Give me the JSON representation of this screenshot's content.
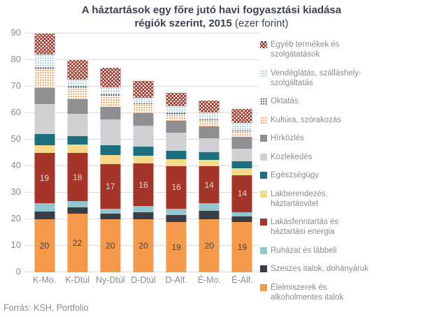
{
  "title": {
    "line1": "A háztartások egy főre jutó havi fogyasztási kiadása",
    "line2_bold": "régiók szerint, 2015",
    "line2_normal": "(ezer forint)"
  },
  "footer": {
    "source": "Forrás: KSH, Portfolio"
  },
  "colors": {
    "title_text": "#3B4252",
    "axis_text": "#8C8C8C",
    "grid_line": "#D9D9D9",
    "background": "#FFFFFF"
  },
  "chart_data": {
    "type": "bar",
    "stacked": true,
    "title": "A háztartások egy főre jutó havi fogyasztási kiadása régiók szerint, 2015 (ezer forint)",
    "xlabel": "",
    "ylabel": "",
    "ylim": [
      0,
      90
    ],
    "ytick_step": 10,
    "grid": true,
    "legend_position": "right",
    "categories": [
      "K-Mo.",
      "K-Dtúl",
      "Ny-Dtúl",
      "D-Dtúl",
      "D-Alf.",
      "É-Mo.",
      "É-Alf."
    ],
    "totals": [
      90,
      80,
      77,
      72,
      68,
      65,
      61.5
    ],
    "series": [
      {
        "name": "Élelmiszerek és alkoholmentes italok",
        "legend_label": "Élelmiszerek és\nalkoholmentes italok",
        "color": "#F5994A",
        "pattern": "solid",
        "show_labels": true,
        "label_color": "#41464C",
        "values": [
          20,
          22,
          20,
          20,
          19,
          20,
          19
        ]
      },
      {
        "name": "Szeszes italok, dohányáruk",
        "legend_label": "Szeszes italok, dohányáruk",
        "color": "#383D46",
        "pattern": "solid",
        "show_labels": false,
        "values": [
          3,
          2.5,
          2,
          2.6,
          2.6,
          3.2,
          2
        ]
      },
      {
        "name": "Ruházat és lábbeli",
        "legend_label": "Ruházat és lábbeli",
        "color": "#93C7CF",
        "pattern": "solid",
        "show_labels": false,
        "values": [
          3,
          2.4,
          1.9,
          2.4,
          2.4,
          2.8,
          1.7
        ]
      },
      {
        "name": "Lakásfenntartás és háztartási energia",
        "legend_label": "Lakásfenntartás és\nháztartási energia",
        "color": "#A43528",
        "pattern": "solid",
        "show_labels": true,
        "label_color": "#E2D4CF",
        "values": [
          19,
          18,
          17,
          16,
          16,
          14,
          14
        ]
      },
      {
        "name": "Lakberendezés, háztartásvitel",
        "legend_label": "Lakberendezés,\nháztartásvitel",
        "color": "#F5D98B",
        "pattern": "solid",
        "show_labels": false,
        "values": [
          3,
          3.4,
          3.2,
          3,
          2.6,
          2.4,
          2.6
        ]
      },
      {
        "name": "Egészségügy",
        "legend_label": "Egészségügy",
        "color": "#1E6F7E",
        "pattern": "solid",
        "show_labels": false,
        "values": [
          4,
          3.1,
          3.9,
          3.5,
          3.1,
          2.8,
          2.6
        ]
      },
      {
        "name": "Közlekedés",
        "legend_label": "Közlekedés",
        "color": "#D0D0D2",
        "pattern": "solid",
        "show_labels": false,
        "values": [
          11.5,
          8.4,
          9.7,
          7.8,
          6.9,
          5.4,
          4.8
        ]
      },
      {
        "name": "Hírközlés",
        "legend_label": "Hírközlés",
        "color": "#8F8F91",
        "pattern": "solid",
        "show_labels": false,
        "values": [
          6,
          5.5,
          4.6,
          4.7,
          4.6,
          4.3,
          4.3
        ]
      },
      {
        "name": "Kultúra, szórakozás",
        "legend_label": "Kultúra, szórakozás",
        "color": "#F0923E",
        "pattern": "dots",
        "show_labels": false,
        "values": [
          7,
          4.3,
          4.1,
          3.4,
          2.4,
          2.4,
          2.3
        ]
      },
      {
        "name": "Oktatás",
        "legend_label": "Oktatás",
        "color": "#383D46",
        "pattern": "dots",
        "show_labels": false,
        "values": [
          1,
          0.7,
          1,
          0.6,
          0.6,
          0.5,
          0.4
        ]
      },
      {
        "name": "Vendéglátás, szálláshely-szolgáltatás",
        "legend_label": "Vendéglátás, szálláshely-\nszolgáltatás",
        "color": "#93C7CF",
        "pattern": "dots",
        "show_labels": false,
        "values": [
          4.5,
          2.4,
          2.3,
          1.8,
          2.4,
          2.4,
          2.6
        ]
      },
      {
        "name": "Egyéb termékek és szolgátatások",
        "legend_label": "Egyéb termékek és\nszolgátatások",
        "color": "#9E3629",
        "pattern": "crosshatch",
        "show_labels": false,
        "values": [
          8,
          7.3,
          7.3,
          6.4,
          5.1,
          4.6,
          5.2
        ]
      }
    ]
  }
}
